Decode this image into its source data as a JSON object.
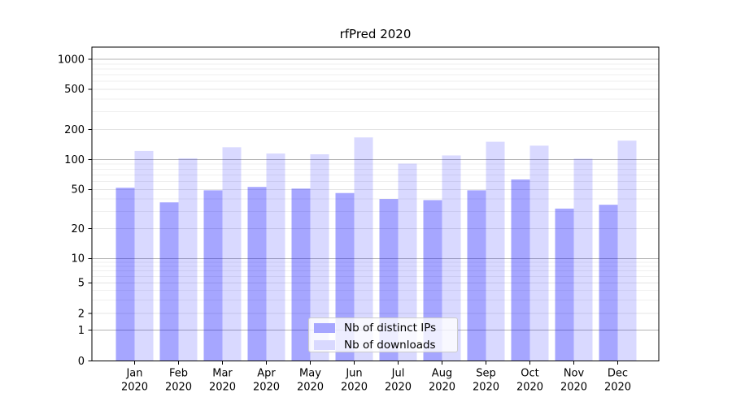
{
  "chart_data": {
    "type": "bar",
    "title": "rfPred 2020",
    "categories": [
      "Jan",
      "Feb",
      "Mar",
      "Apr",
      "May",
      "Jun",
      "Jul",
      "Aug",
      "Sep",
      "Oct",
      "Nov",
      "Dec"
    ],
    "x_year_label": "2020",
    "series": [
      {
        "name": "Nb of distinct IPs",
        "color": "#0000ff",
        "opacity": 0.35,
        "values": [
          52,
          37,
          49,
          53,
          51,
          46,
          40,
          39,
          49,
          63,
          32,
          35
        ]
      },
      {
        "name": "Nb of downloads",
        "color": "#0000ff",
        "opacity": 0.15,
        "values": [
          122,
          103,
          133,
          115,
          113,
          167,
          91,
          110,
          151,
          138,
          102,
          155
        ]
      }
    ],
    "yscale": "symlog",
    "y_ticks": [
      0,
      1,
      2,
      5,
      10,
      20,
      50,
      100,
      200,
      500,
      1000
    ],
    "y_major_ticks": [
      1,
      10,
      100,
      1000
    ],
    "ylim": [
      0,
      1300
    ],
    "grid": "on",
    "legend_position": "lower center"
  },
  "colors": {
    "bar_ips_solid": "#a6a6ff",
    "bar_downloads_solid": "#d9d9ff",
    "grid_major": "#b3b3b3",
    "grid_minor": "#e4e4e4",
    "grid_subminor": "#efefef",
    "axis": "#000000",
    "text": "#000000",
    "legend_border": "#cccccc"
  }
}
